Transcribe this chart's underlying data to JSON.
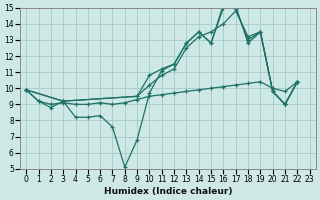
{
  "xlabel": "Humidex (Indice chaleur)",
  "xlim": [
    -0.5,
    23.5
  ],
  "ylim": [
    5,
    15
  ],
  "xticks": [
    0,
    1,
    2,
    3,
    4,
    5,
    6,
    7,
    8,
    9,
    10,
    11,
    12,
    13,
    14,
    15,
    16,
    17,
    18,
    19,
    20,
    21,
    22,
    23
  ],
  "yticks": [
    5,
    6,
    7,
    8,
    9,
    10,
    11,
    12,
    13,
    14,
    15
  ],
  "bg_color": "#cde8e5",
  "grid_color": "#aacfcc",
  "line_color": "#1e7068",
  "series": {
    "zigzag_x": [
      0,
      1,
      2,
      3,
      4,
      5,
      6,
      7,
      8,
      9,
      10,
      11,
      12,
      13,
      14,
      15,
      16,
      17,
      18,
      19,
      20,
      21,
      22
    ],
    "zigzag_y": [
      9.9,
      9.2,
      8.8,
      9.2,
      8.2,
      8.2,
      8.3,
      7.6,
      5.1,
      6.8,
      9.7,
      11.1,
      11.5,
      12.8,
      13.5,
      12.8,
      15.0,
      15.1,
      12.8,
      13.5,
      9.8,
      9.0,
      10.4
    ],
    "flat_x": [
      0,
      1,
      2,
      3,
      4,
      5,
      6,
      7,
      8,
      9,
      10,
      11,
      12,
      13,
      14,
      15,
      16,
      17,
      18,
      19,
      20,
      21,
      22
    ],
    "flat_y": [
      9.9,
      9.2,
      9.0,
      9.1,
      9.0,
      9.0,
      9.1,
      9.0,
      9.1,
      9.3,
      9.5,
      9.6,
      9.7,
      9.8,
      9.9,
      10.0,
      10.1,
      10.2,
      10.3,
      10.4,
      10.0,
      9.8,
      10.4
    ],
    "steep_x": [
      0,
      3,
      9,
      10,
      11,
      12,
      13,
      14,
      15,
      16,
      17,
      18,
      19,
      20,
      21,
      22
    ],
    "steep_y": [
      9.9,
      9.2,
      9.5,
      10.8,
      11.2,
      11.5,
      12.8,
      13.5,
      12.8,
      15.2,
      14.9,
      13.0,
      13.5,
      9.8,
      9.0,
      10.4
    ],
    "mid_x": [
      0,
      3,
      9,
      10,
      11,
      12,
      13,
      14,
      15,
      16,
      17,
      18,
      19,
      20,
      21,
      22
    ],
    "mid_y": [
      9.9,
      9.2,
      9.5,
      10.2,
      10.8,
      11.2,
      12.5,
      13.2,
      13.5,
      14.0,
      14.8,
      13.2,
      13.5,
      9.8,
      9.0,
      10.4
    ]
  }
}
